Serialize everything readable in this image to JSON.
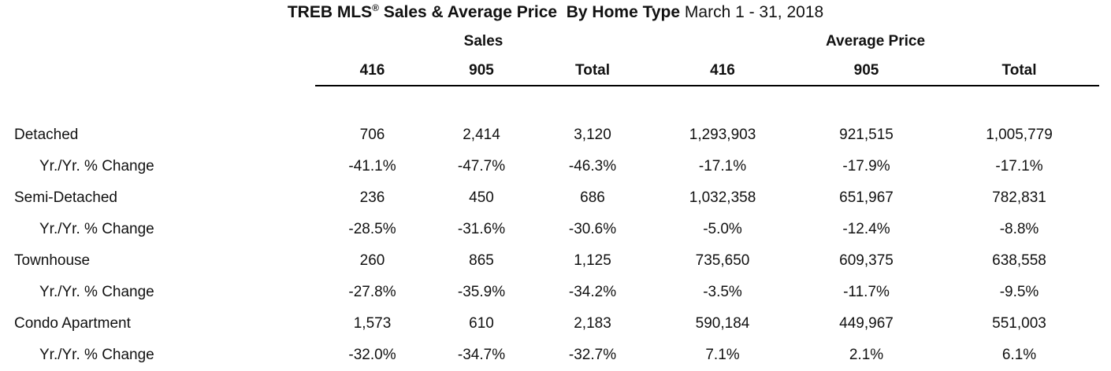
{
  "title": {
    "prefix_bold": "TREB MLS",
    "reg_mark": "®",
    "middle_bold": " Sales & Average Price  By Home Type ",
    "date_regular": "March 1 - 31, 2018"
  },
  "table": {
    "group_headers": [
      {
        "label": "Sales"
      },
      {
        "label": "Average Price"
      }
    ],
    "column_headers": [
      "416",
      "905",
      "Total",
      "416",
      "905",
      "Total"
    ],
    "rows": [
      {
        "label": "Detached",
        "values": [
          "706",
          "2,414",
          "3,120",
          "1,293,903",
          "921,515",
          "1,005,779"
        ]
      },
      {
        "label": "Yr./Yr. % Change",
        "values": [
          "-41.1%",
          "-47.7%",
          "-46.3%",
          "-17.1%",
          "-17.9%",
          "-17.1%"
        ]
      },
      {
        "label": "Semi-Detached",
        "values": [
          "236",
          "450",
          "686",
          "1,032,358",
          "651,967",
          "782,831"
        ]
      },
      {
        "label": "Yr./Yr. % Change",
        "values": [
          "-28.5%",
          "-31.6%",
          "-30.6%",
          "-5.0%",
          "-12.4%",
          "-8.8%"
        ]
      },
      {
        "label": "Townhouse",
        "values": [
          "260",
          "865",
          "1,125",
          "735,650",
          "609,375",
          "638,558"
        ]
      },
      {
        "label": "Yr./Yr. % Change",
        "values": [
          "-27.8%",
          "-35.9%",
          "-34.2%",
          "-3.5%",
          "-11.7%",
          "-9.5%"
        ]
      },
      {
        "label": "Condo Apartment",
        "values": [
          "1,573",
          "610",
          "2,183",
          "590,184",
          "449,967",
          "551,003"
        ]
      },
      {
        "label": "Yr./Yr. % Change",
        "values": [
          "-32.0%",
          "-34.7%",
          "-32.7%",
          "7.1%",
          "2.1%",
          "6.1%"
        ]
      }
    ]
  },
  "colors": {
    "background": "#ffffff",
    "text": "#111111",
    "rule": "#000000"
  }
}
